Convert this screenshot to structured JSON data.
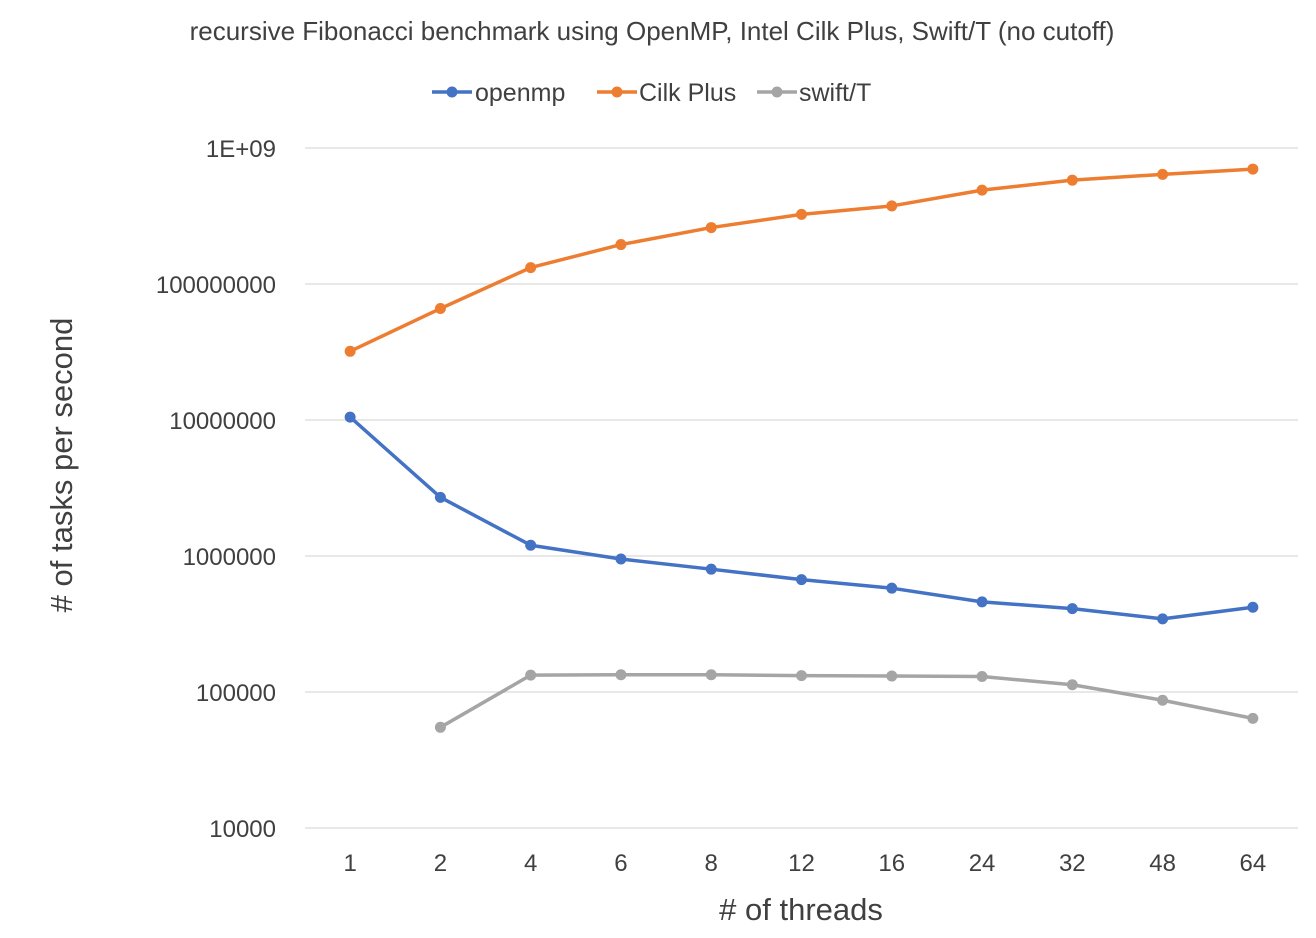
{
  "chart_data": {
    "type": "line",
    "title": "recursive Fibonacci benchmark using OpenMP, Intel Cilk Plus, Swift/T (no cutoff)",
    "xlabel": "# of threads",
    "ylabel": "# of tasks per second",
    "x_scale": "category",
    "y_scale": "log",
    "ylim": [
      10000,
      1000000000
    ],
    "grid": true,
    "legend_position": "top",
    "categories": [
      "1",
      "2",
      "4",
      "6",
      "8",
      "12",
      "16",
      "24",
      "32",
      "48",
      "64"
    ],
    "y_ticks": [
      {
        "value": 10000,
        "label": "10000"
      },
      {
        "value": 100000,
        "label": "100000"
      },
      {
        "value": 1000000,
        "label": "1000000"
      },
      {
        "value": 10000000,
        "label": "10000000"
      },
      {
        "value": 100000000,
        "label": "100000000"
      },
      {
        "value": 1000000000,
        "label": "1E+09"
      }
    ],
    "series": [
      {
        "name": "openmp",
        "color": "#4472C4",
        "values": [
          10500000,
          2700000,
          1200000,
          950000,
          800000,
          670000,
          580000,
          460000,
          410000,
          345000,
          420000
        ]
      },
      {
        "name": "Cilk Plus",
        "color": "#ED7D31",
        "values": [
          32000000,
          66000000,
          132000000,
          195000000,
          260000000,
          325000000,
          375000000,
          490000000,
          580000000,
          640000000,
          700000000
        ]
      },
      {
        "name": "swift/T",
        "color": "#A5A5A5",
        "values": [
          null,
          55000,
          133000,
          134000,
          134000,
          132000,
          131000,
          130000,
          113000,
          87000,
          64000
        ]
      }
    ]
  }
}
